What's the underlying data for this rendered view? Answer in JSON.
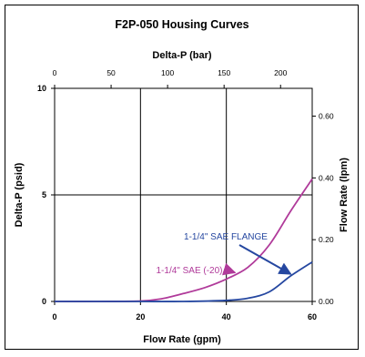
{
  "chart_data": {
    "type": "line",
    "title": "F2P-050 Housing Curves",
    "xlabel": "Flow Rate (gpm)",
    "ylabel": "Delta-P (psid)",
    "top_axis_label": "Delta-P (bar)",
    "right_axis_label": "Flow Rate (lpm)",
    "xlim": [
      0,
      60
    ],
    "ylim": [
      0,
      10
    ],
    "x_ticks": [
      "0",
      "20",
      "40",
      "60"
    ],
    "y_ticks": [
      "0",
      "5",
      "10"
    ],
    "top_ticks": [
      "0",
      "50",
      "100",
      "150",
      "200"
    ],
    "top_tick_positions": [
      0,
      50,
      100,
      150,
      200
    ],
    "top_lim": [
      0,
      228
    ],
    "right_ticks": [
      "0.00",
      "0.20",
      "0.40",
      "0.60"
    ],
    "right_tick_positions": [
      0,
      0.2,
      0.4,
      0.6
    ],
    "right_lim": [
      0,
      0.69
    ],
    "grid": true,
    "series": [
      {
        "name": "1-1/4\" SAE (-20)",
        "color": "#b03a9a",
        "x": [
          0,
          10,
          20,
          25,
          30,
          35,
          40,
          45,
          50,
          55,
          60
        ],
        "y": [
          0,
          0,
          0.02,
          0.13,
          0.37,
          0.65,
          1.05,
          1.6,
          2.65,
          4.25,
          5.75
        ]
      },
      {
        "name": "1-1/4\" SAE FLANGE",
        "color": "#2547a0",
        "x": [
          0,
          10,
          20,
          30,
          40,
          45,
          50,
          55,
          60
        ],
        "y": [
          0,
          0,
          0,
          0,
          0.05,
          0.15,
          0.45,
          1.2,
          1.85
        ]
      }
    ],
    "annotations": [
      {
        "text": "1-1/4\" SAE FLANGE",
        "color": "#2547a0",
        "points_to_series": 1
      },
      {
        "text": "1-1/4\" SAE (-20)",
        "color": "#b03a9a",
        "points_to_series": 0
      }
    ]
  }
}
